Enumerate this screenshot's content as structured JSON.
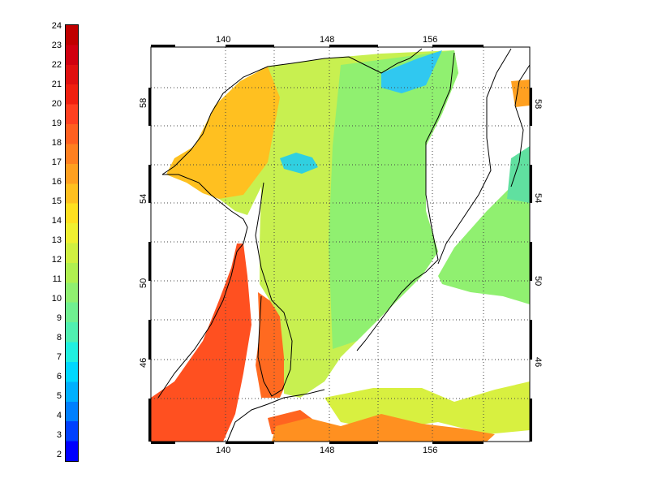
{
  "colorbar": {
    "labels": [
      "24",
      "23",
      "22",
      "21",
      "20",
      "19",
      "18",
      "17",
      "16",
      "15",
      "14",
      "13",
      "12",
      "11",
      "10",
      "9",
      "8",
      "7",
      "6",
      "5",
      "4",
      "3",
      "2"
    ],
    "colors": [
      "#0000ff",
      "#0040ff",
      "#0080ff",
      "#00b0ff",
      "#00d8ff",
      "#20f0e0",
      "#50f0b0",
      "#70f090",
      "#90f070",
      "#b0f050",
      "#d0f040",
      "#f0f030",
      "#ffe020",
      "#ffc020",
      "#ffa020",
      "#ff8020",
      "#ff6020",
      "#ff4020",
      "#f02010",
      "#e01010",
      "#d00010",
      "#c00000"
    ]
  },
  "map": {
    "top_lon_labels": [
      "140",
      "148",
      "156"
    ],
    "bottom_lon_labels": [
      "140",
      "148",
      "156"
    ],
    "left_lat_labels": [
      "58",
      "54",
      "50",
      "46"
    ],
    "right_lat_labels": [
      "58",
      "54",
      "50",
      "46"
    ]
  }
}
